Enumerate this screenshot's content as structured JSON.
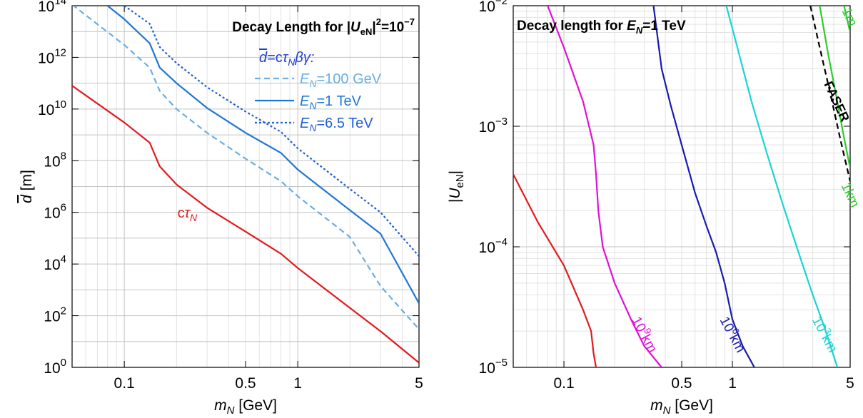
{
  "chart_data": [
    {
      "type": "line",
      "title": "Decay Length for |U_eN|²=10⁻⁷",
      "title_parts": {
        "prefix": "Decay Length for |",
        "var": "U",
        "sub": "eN",
        "mid": "|",
        "sup1": "2",
        "eq": "=10",
        "sup2": "−7"
      },
      "xlabel": "m_N [GeV]",
      "xlabel_parts": {
        "var": "m",
        "sub": "N",
        "unit": " [GeV]"
      },
      "ylabel": "d̄ [m]",
      "ylabel_parts": {
        "var": "d",
        "unit": " [m]"
      },
      "x_scale": "log",
      "y_scale": "log",
      "xlim": [
        0.05,
        5
      ],
      "ylim": [
        1,
        100000000000000.0
      ],
      "x_ticks": [
        {
          "v": 0.1,
          "label": "0.1"
        },
        {
          "v": 0.5,
          "label": "0.5"
        },
        {
          "v": 1,
          "label": "1"
        },
        {
          "v": 5,
          "label": "5"
        }
      ],
      "y_ticks": [
        {
          "v": 1,
          "base": "10",
          "exp": "0"
        },
        {
          "v": 100,
          "base": "10",
          "exp": "2"
        },
        {
          "v": 10000.0,
          "base": "10",
          "exp": "4"
        },
        {
          "v": 1000000.0,
          "base": "10",
          "exp": "6"
        },
        {
          "v": 100000000.0,
          "base": "10",
          "exp": "8"
        },
        {
          "v": 10000000000.0,
          "base": "10",
          "exp": "10"
        },
        {
          "v": 1000000000000.0,
          "base": "10",
          "exp": "12"
        },
        {
          "v": 100000000000000.0,
          "base": "10",
          "exp": "14"
        }
      ],
      "grid": true,
      "legend_position": "top-right",
      "legend_title": {
        "d": "d",
        "eq": "=c",
        "tau": "τ",
        "sub": "N",
        "rest": "βγ:"
      },
      "series": [
        {
          "name": "cτ_N",
          "label_parts": {
            "c": "c",
            "tau": "τ",
            "sub": "N"
          },
          "color": "#e31a1c",
          "dash": "solid",
          "points": [
            [
              0.05,
              80000000000.0
            ],
            [
              0.1,
              3000000000.0
            ],
            [
              0.14,
              500000000.0
            ],
            [
              0.16,
              60000000.0
            ],
            [
              0.2,
              12000000.0
            ],
            [
              0.3,
              1500000.0
            ],
            [
              0.5,
              180000.0
            ],
            [
              0.8,
              25000.0
            ],
            [
              1.0,
              7000.0
            ],
            [
              2.0,
              200.0
            ],
            [
              3.0,
              25
            ],
            [
              5.0,
              1.5
            ]
          ]
        },
        {
          "name": "E_N=100 GeV",
          "label_parts": {
            "var": "E",
            "sub": "N",
            "rest": "=100 GeV"
          },
          "color": "#6aaee3",
          "dash": "dashed",
          "points": [
            [
              0.05,
              110000000000000.0
            ],
            [
              0.1,
              3000000000000.0
            ],
            [
              0.14,
              400000000000.0
            ],
            [
              0.16,
              50000000000.0
            ],
            [
              0.2,
              10000000000.0
            ],
            [
              0.3,
              1200000000.0
            ],
            [
              0.5,
              120000000.0
            ],
            [
              0.8,
              16000000.0
            ],
            [
              1.0,
              4200000.0
            ],
            [
              2.0,
              110000.0
            ],
            [
              3.0,
              1400.0
            ],
            [
              5.0,
              30
            ]
          ]
        },
        {
          "name": "E_N=1 TeV",
          "label_parts": {
            "var": "E",
            "sub": "N",
            "rest": "=1 TeV"
          },
          "color": "#1f77d4",
          "dash": "solid",
          "points": [
            [
              0.08,
              100000000000000.0
            ],
            [
              0.1,
              30000000000000.0
            ],
            [
              0.14,
              3500000000000.0
            ],
            [
              0.16,
              400000000000.0
            ],
            [
              0.2,
              100000000000.0
            ],
            [
              0.3,
              11000000000.0
            ],
            [
              0.5,
              1200000000.0
            ],
            [
              0.8,
              200000000.0
            ],
            [
              1.0,
              45000000.0
            ],
            [
              2.0,
              1200000.0
            ],
            [
              3.0,
              150000.0
            ],
            [
              5.0,
              300
            ]
          ]
        },
        {
          "name": "E_N=6.5 TeV",
          "label_parts": {
            "var": "E",
            "sub": "N",
            "rest": "=6.5 TeV"
          },
          "color": "#1f5fd4",
          "dash": "dotted",
          "points": [
            [
              0.1,
              100000000000000.0
            ],
            [
              0.14,
              20000000000000.0
            ],
            [
              0.16,
              2500000000000.0
            ],
            [
              0.2,
              600000000000.0
            ],
            [
              0.3,
              70000000000.0
            ],
            [
              0.5,
              8000000000.0
            ],
            [
              0.8,
              1300000000.0
            ],
            [
              1.0,
              300000000.0
            ],
            [
              2.0,
              8000000.0
            ],
            [
              3.0,
              1000000.0
            ],
            [
              5.0,
              20000.0
            ]
          ]
        }
      ],
      "annotations": [
        {
          "text_parts": {
            "c": "c",
            "tau": "τ",
            "sub": "N"
          },
          "x": 0.18,
          "y": 1200000.0,
          "color": "#e31a1c"
        }
      ]
    },
    {
      "type": "line",
      "title": "Decay length for E_N=1 TeV",
      "title_parts": {
        "prefix": "Decay length for ",
        "var": "E",
        "sub": "N",
        "rest": "=1 TeV"
      },
      "xlabel": "m_N [GeV]",
      "xlabel_parts": {
        "var": "m",
        "sub": "N",
        "unit": " [GeV]"
      },
      "ylabel": "|U_eN|",
      "ylabel_parts": {
        "bar": "|",
        "var": "U",
        "sub": "eN",
        "end": "|"
      },
      "x_scale": "log",
      "y_scale": "log",
      "xlim": [
        0.05,
        5
      ],
      "ylim": [
        1e-05,
        0.01
      ],
      "x_ticks": [
        {
          "v": 0.1,
          "label": "0.1"
        },
        {
          "v": 0.5,
          "label": "0.5"
        },
        {
          "v": 1,
          "label": "1"
        },
        {
          "v": 5,
          "label": "5"
        }
      ],
      "y_ticks": [
        {
          "v": 1e-05,
          "base": "10",
          "exp": "−5"
        },
        {
          "v": 0.0001,
          "base": "10",
          "exp": "−4"
        },
        {
          "v": 0.001,
          "base": "10",
          "exp": "−3"
        },
        {
          "v": 0.01,
          "base": "10",
          "exp": "−2"
        }
      ],
      "grid": true,
      "series": [
        {
          "name": "c_tau_unlabeled",
          "color": "#e31a1c",
          "dash": "solid",
          "points": [
            [
              0.05,
              0.0004
            ],
            [
              0.07,
              0.00016
            ],
            [
              0.1,
              7e-05
            ],
            [
              0.13,
              3e-05
            ],
            [
              0.145,
              2e-05
            ],
            [
              0.15,
              1.3e-05
            ],
            [
              0.155,
              1e-05
            ]
          ]
        },
        {
          "name": "10^9 km",
          "color": "#e010d6",
          "dash": "solid",
          "label_parts": {
            "base": "10",
            "exp": "9",
            "unit": "km"
          },
          "points": [
            [
              0.08,
              0.01
            ],
            [
              0.1,
              0.0045
            ],
            [
              0.13,
              0.0016
            ],
            [
              0.15,
              0.0007
            ],
            [
              0.155,
              0.0004
            ],
            [
              0.16,
              0.0002
            ],
            [
              0.17,
              0.0001
            ],
            [
              0.2,
              5e-05
            ],
            [
              0.25,
              2.5e-05
            ],
            [
              0.3,
              1.5e-05
            ],
            [
              0.38,
              1e-05
            ]
          ]
        },
        {
          "name": "10^6 km",
          "color": "#1a1ab0",
          "dash": "solid",
          "label_parts": {
            "base": "10",
            "exp": "6",
            "unit": "km"
          },
          "points": [
            [
              0.34,
              0.01
            ],
            [
              0.38,
              0.003
            ],
            [
              0.43,
              0.0015
            ],
            [
              0.5,
              0.0007
            ],
            [
              0.6,
              0.00028
            ],
            [
              0.7,
              0.00015
            ],
            [
              0.8,
              9e-05
            ],
            [
              0.9,
              5e-05
            ],
            [
              1.0,
              2.5e-05
            ],
            [
              1.15,
              1.5e-05
            ],
            [
              1.35,
              1e-05
            ]
          ]
        },
        {
          "name": "10^3 km",
          "color": "#19d4d4",
          "dash": "solid",
          "label_parts": {
            "base": "10",
            "exp": "3",
            "unit": "km"
          },
          "points": [
            [
              0.92,
              0.01
            ],
            [
              1.05,
              0.005
            ],
            [
              1.3,
              0.0016
            ],
            [
              1.6,
              0.0006
            ],
            [
              2.0,
              0.00022
            ],
            [
              2.5,
              8.5e-05
            ],
            [
              3.0,
              4e-05
            ],
            [
              3.5,
              2.2e-05
            ],
            [
              4.2,
              1e-05
            ]
          ]
        },
        {
          "name": "1km",
          "color": "#2fcc2f",
          "dash": "solid",
          "points": [
            [
              3.3,
              0.01
            ],
            [
              3.7,
              0.004
            ],
            [
              4.1,
              0.0019
            ],
            [
              4.6,
              0.0008
            ],
            [
              5.0,
              0.00045
            ]
          ]
        },
        {
          "name": "1m",
          "color": "#2fcc2f",
          "dash": "solid",
          "points": [
            [
              4.6,
              0.01
            ],
            [
              5.0,
              0.006
            ]
          ]
        },
        {
          "name": "FASER",
          "color": "#000000",
          "dash": "dashed",
          "points": [
            [
              2.9,
              0.01
            ],
            [
              3.3,
              0.0045
            ],
            [
              3.8,
              0.0019
            ],
            [
              4.4,
              0.00075
            ],
            [
              5.0,
              0.00035
            ]
          ]
        }
      ]
    }
  ]
}
